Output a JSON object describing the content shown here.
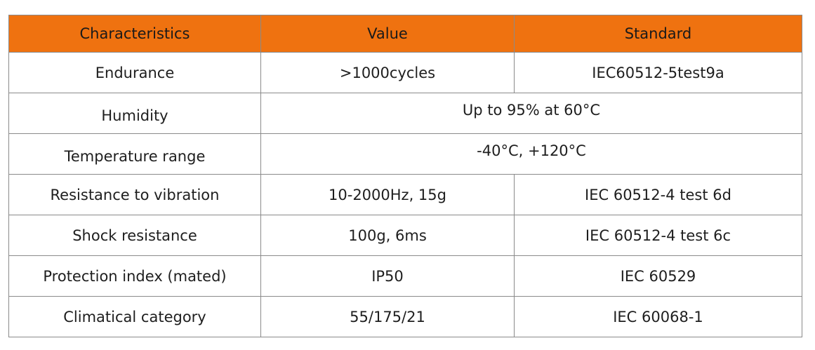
{
  "table": {
    "headers": [
      "Characteristics",
      "Value",
      "Standard"
    ],
    "rows": [
      {
        "characteristic": "Endurance",
        "value": ">1000cycles",
        "standard": "IEC60512-5test9a"
      },
      {
        "characteristic": "Humidity",
        "value": "Up to 95% at 60°C",
        "standard": null
      },
      {
        "characteristic": "Temperature range",
        "value": "-40°C, +120°C",
        "standard": null
      },
      {
        "characteristic": "Resistance to vibration",
        "value": "10-2000Hz, 15g",
        "standard": "IEC 60512-4 test 6d"
      },
      {
        "characteristic": "Shock resistance",
        "value": "100g, 6ms",
        "standard": "IEC 60512-4 test 6c"
      },
      {
        "characteristic": "Protection index (mated)",
        "value": "IP50",
        "standard": "IEC 60529"
      },
      {
        "characteristic": "Climatical category",
        "value": "55/175/21",
        "standard": "IEC 60068-1"
      }
    ]
  },
  "colors": {
    "header_background": "#ef7210",
    "border": "#8a8a8a"
  }
}
